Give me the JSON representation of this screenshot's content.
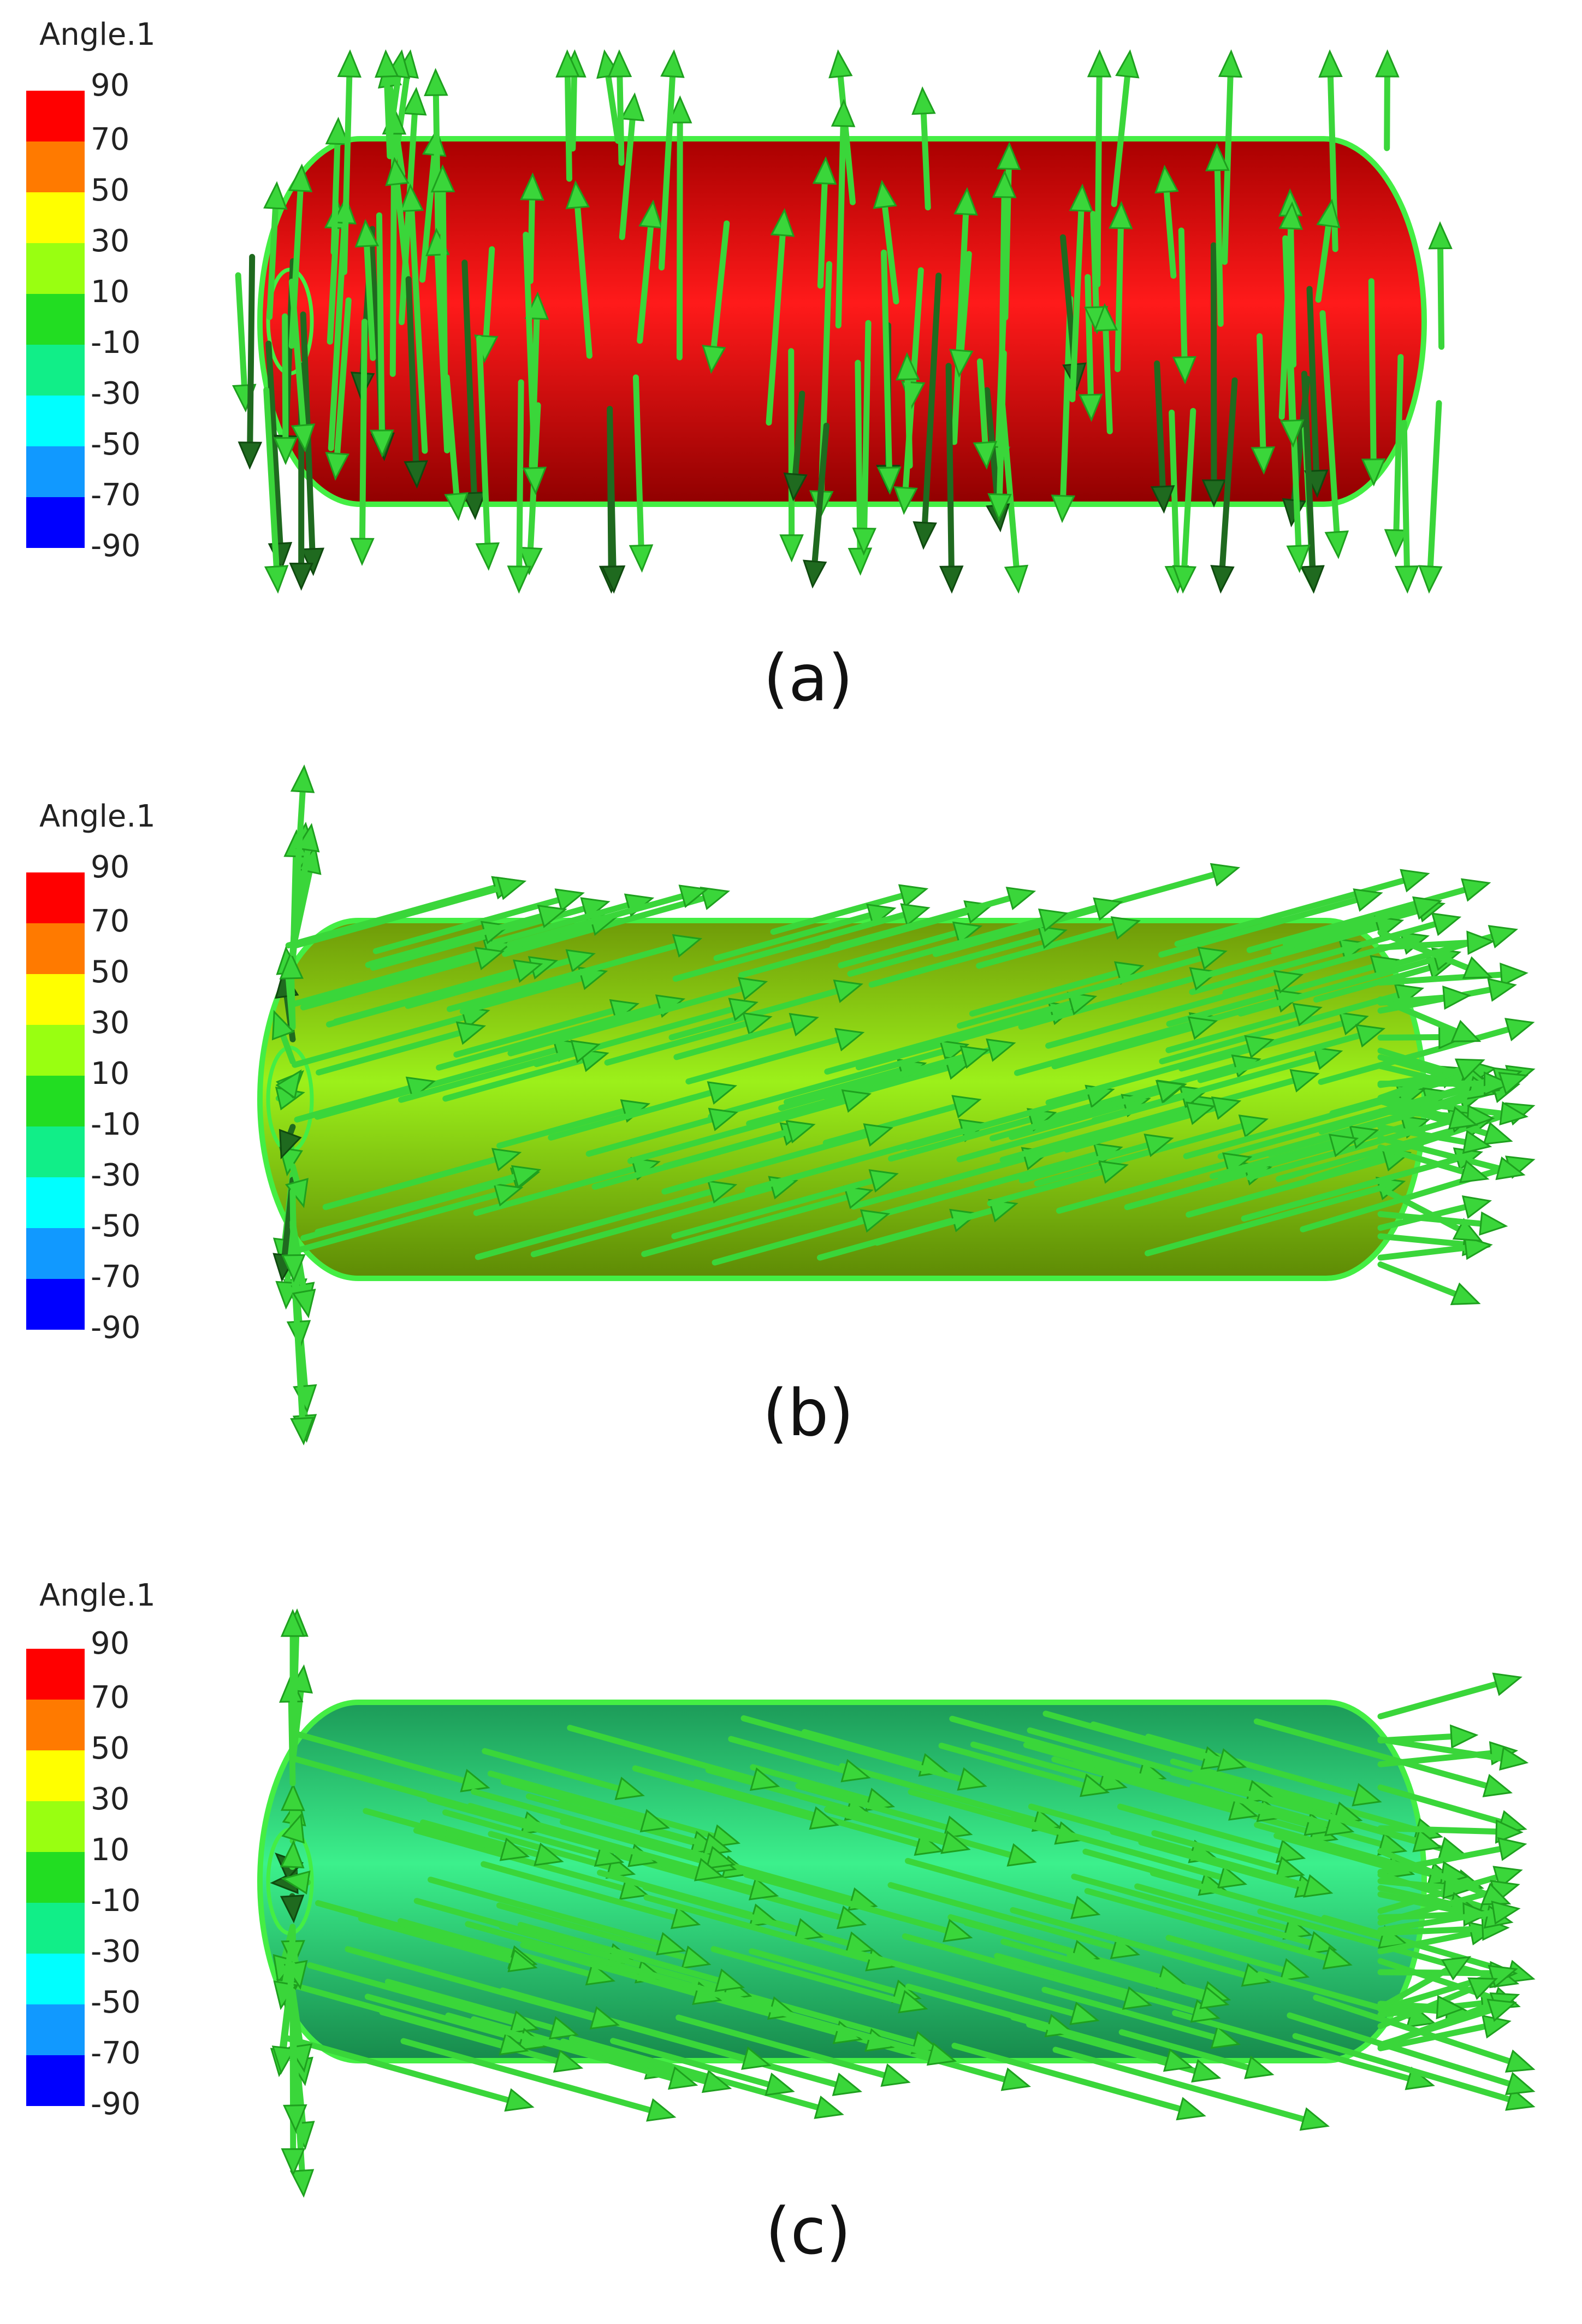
{
  "panels": [
    {
      "legend_title": "Angle.1",
      "legend_labels": [
        "90",
        "70",
        "50",
        "30",
        "10",
        "-10",
        "-30",
        "-50",
        "-70",
        "-90"
      ],
      "caption": "(a)"
    },
    {
      "legend_title": "Angle.1",
      "legend_labels": [
        "90",
        "70",
        "50",
        "30",
        "10",
        "-10",
        "-30",
        "-50",
        "-70",
        "-90"
      ],
      "caption": "(b)"
    },
    {
      "legend_title": "Angle.1",
      "legend_labels": [
        "90",
        "70",
        "50",
        "30",
        "10",
        "-10",
        "-30",
        "-50",
        "-70",
        "-90"
      ],
      "caption": "(c)"
    }
  ]
}
